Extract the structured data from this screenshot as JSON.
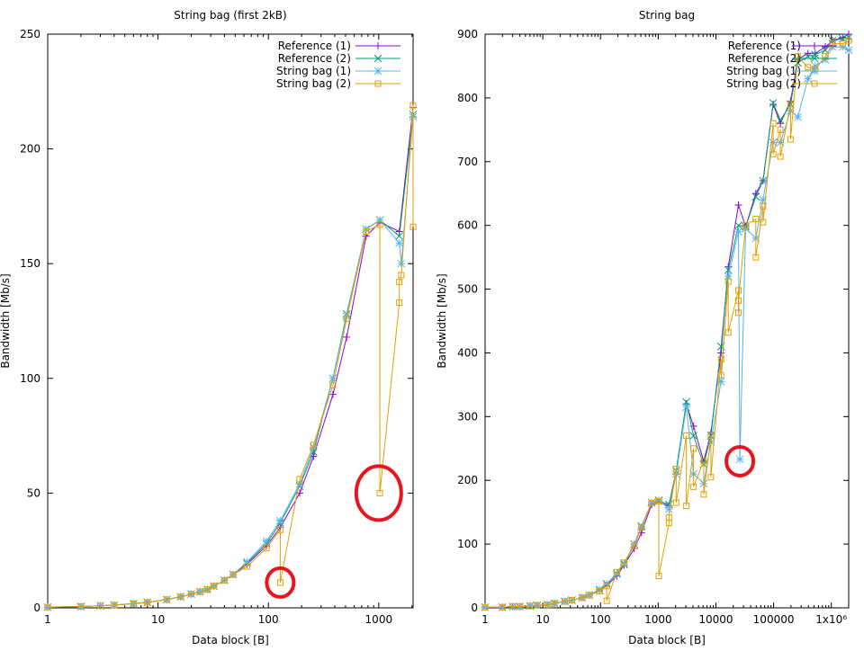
{
  "colors": {
    "ref1": "#9400d3",
    "ref2": "#009e73",
    "sb1": "#56b4e9",
    "sb2": "#e69f00",
    "highlight": "#e8141e"
  },
  "chart_data": [
    {
      "type": "line",
      "title": "String bag (first 2kB)",
      "xlabel": "Data block [B]",
      "ylabel": "Bandwidth [Mb/s]",
      "xscale": "log",
      "xlim": [
        1,
        2048
      ],
      "ylim": [
        0,
        250
      ],
      "xticks": [
        {
          "value": 1,
          "label": "1"
        },
        {
          "value": 10,
          "label": "10"
        },
        {
          "value": 100,
          "label": "100"
        },
        {
          "value": 1000,
          "label": "1000"
        }
      ],
      "yticks": [
        {
          "value": 0,
          "label": "0"
        },
        {
          "value": 50,
          "label": "50"
        },
        {
          "value": 100,
          "label": "100"
        },
        {
          "value": 150,
          "label": "150"
        },
        {
          "value": 200,
          "label": "200"
        },
        {
          "value": 250,
          "label": "250"
        }
      ],
      "legend_position": "top-right",
      "series": [
        {
          "name": "Reference (1)",
          "marker": "plus",
          "x": [
            1,
            2,
            3,
            4,
            6,
            8,
            12,
            16,
            20,
            24,
            28,
            32,
            40,
            48,
            64,
            96,
            128,
            192,
            256,
            384,
            512,
            768,
            1024,
            1536,
            2048
          ],
          "y": [
            0.3,
            0.6,
            0.9,
            1.2,
            1.8,
            2.4,
            3.6,
            4.8,
            6,
            7,
            8,
            9.5,
            12,
            14.5,
            19,
            27,
            35,
            50,
            66,
            93,
            118,
            162,
            168,
            164,
            218
          ]
        },
        {
          "name": "Reference (2)",
          "marker": "cross",
          "x": [
            1,
            2,
            3,
            4,
            6,
            8,
            12,
            16,
            20,
            24,
            28,
            32,
            40,
            48,
            64,
            96,
            128,
            192,
            256,
            384,
            512,
            768,
            1024,
            1536,
            2048
          ],
          "y": [
            0.3,
            0.6,
            0.9,
            1.2,
            1.8,
            2.4,
            3.6,
            4.8,
            6,
            7,
            8,
            9.5,
            12,
            14.5,
            19.5,
            28,
            37,
            53,
            68,
            100,
            128,
            165,
            169,
            162,
            215
          ]
        },
        {
          "name": "String bag (1)",
          "marker": "star",
          "x": [
            1,
            2,
            3,
            4,
            6,
            8,
            12,
            16,
            20,
            24,
            28,
            32,
            40,
            48,
            64,
            96,
            128,
            192,
            256,
            384,
            512,
            768,
            1024,
            1536,
            1600,
            2048
          ],
          "y": [
            0.3,
            0.6,
            0.9,
            1.2,
            1.8,
            2.4,
            3.6,
            4.8,
            6,
            7,
            8,
            9.5,
            12,
            14.5,
            20,
            29,
            38,
            54,
            70,
            100,
            127,
            165,
            169,
            159,
            150,
            214
          ]
        },
        {
          "name": "String bag (2)",
          "marker": "square",
          "x": [
            1,
            2,
            3,
            4,
            6,
            8,
            12,
            16,
            20,
            24,
            28,
            32,
            40,
            48,
            64,
            96,
            128,
            128,
            192,
            256,
            384,
            512,
            768,
            1024,
            1024,
            1536,
            1536,
            1600,
            2048,
            2048
          ],
          "y": [
            0.3,
            0.6,
            0.9,
            1.2,
            1.8,
            2.4,
            3.6,
            4.8,
            6,
            7,
            8,
            9.5,
            12,
            14.5,
            18,
            26,
            34,
            11,
            56,
            71,
            97,
            126,
            164,
            167,
            50,
            133,
            142,
            145,
            219,
            166
          ]
        }
      ],
      "annotations": [
        {
          "x": 128,
          "y": 11
        },
        {
          "x": 1000,
          "y": 50
        }
      ]
    },
    {
      "type": "line",
      "title": "String bag",
      "xlabel": "Data block [B]",
      "ylabel": "Bandwidth [Mb/s]",
      "xscale": "log",
      "xlim": [
        1,
        2000000
      ],
      "ylim": [
        0,
        900
      ],
      "xticks": [
        {
          "value": 1,
          "label": "1"
        },
        {
          "value": 10,
          "label": "10"
        },
        {
          "value": 100,
          "label": "100"
        },
        {
          "value": 1000,
          "label": "1000"
        },
        {
          "value": 10000,
          "label": "10000"
        },
        {
          "value": 100000,
          "label": "100000"
        },
        {
          "value": 1000000,
          "label": "1x10⁶"
        }
      ],
      "yticks": [
        {
          "value": 0,
          "label": "0"
        },
        {
          "value": 100,
          "label": "100"
        },
        {
          "value": 200,
          "label": "200"
        },
        {
          "value": 300,
          "label": "300"
        },
        {
          "value": 400,
          "label": "400"
        },
        {
          "value": 500,
          "label": "500"
        },
        {
          "value": 600,
          "label": "600"
        },
        {
          "value": 700,
          "label": "700"
        },
        {
          "value": 800,
          "label": "800"
        },
        {
          "value": 900,
          "label": "900"
        }
      ],
      "legend_position": "top-right",
      "series": [
        {
          "name": "Reference (1)",
          "marker": "plus",
          "x": [
            1,
            2,
            3,
            4,
            6,
            8,
            12,
            16,
            24,
            32,
            48,
            64,
            96,
            128,
            192,
            256,
            384,
            512,
            768,
            1024,
            1536,
            2048,
            3072,
            4096,
            6144,
            8192,
            12288,
            16384,
            24576,
            32768,
            49152,
            65536,
            98304,
            131072,
            196608,
            262144,
            393216,
            524288,
            786432,
            1048576,
            1572864,
            2000000
          ],
          "y": [
            1,
            1,
            2,
            2,
            3,
            4,
            5,
            7,
            10,
            12,
            16,
            20,
            27,
            35,
            50,
            67,
            93,
            118,
            162,
            166,
            160,
            210,
            320,
            285,
            230,
            275,
            400,
            535,
            632,
            598,
            650,
            670,
            790,
            760,
            795,
            860,
            870,
            870,
            880,
            890,
            895,
            900
          ]
        },
        {
          "name": "Reference (2)",
          "marker": "cross",
          "x": [
            1,
            2,
            3,
            4,
            6,
            8,
            12,
            16,
            24,
            32,
            48,
            64,
            96,
            128,
            192,
            256,
            384,
            512,
            768,
            1024,
            1536,
            2048,
            3072,
            4096,
            6144,
            8192,
            12288,
            16384,
            24576,
            32768,
            49152,
            65536,
            98304,
            131072,
            196608,
            262144,
            393216,
            524288,
            786432,
            1048576,
            1572864,
            2000000
          ],
          "y": [
            1,
            1,
            2,
            2,
            3,
            4,
            5,
            7,
            10,
            12,
            16,
            20,
            28,
            37,
            53,
            68,
            100,
            128,
            165,
            168,
            162,
            215,
            323,
            270,
            225,
            270,
            410,
            530,
            600,
            598,
            645,
            670,
            792,
            765,
            790,
            855,
            865,
            868,
            875,
            890,
            893,
            895
          ]
        },
        {
          "name": "String bag (1)",
          "marker": "star",
          "x": [
            1,
            2,
            3,
            4,
            6,
            8,
            12,
            16,
            24,
            32,
            48,
            64,
            96,
            128,
            192,
            256,
            384,
            512,
            768,
            1024,
            1536,
            2048,
            3072,
            4096,
            6144,
            8192,
            12288,
            16384,
            24576,
            26000,
            32768,
            49152,
            65536,
            98304,
            131072,
            196608,
            262144,
            393216,
            524288,
            786432,
            1048576,
            1572864,
            2000000
          ],
          "y": [
            1,
            1,
            2,
            2,
            3,
            4,
            5,
            7,
            10,
            12,
            16,
            20,
            29,
            38,
            54,
            70,
            100,
            127,
            165,
            169,
            155,
            210,
            315,
            210,
            195,
            260,
            355,
            520,
            590,
            233,
            595,
            580,
            640,
            730,
            730,
            780,
            770,
            830,
            850,
            860,
            880,
            880,
            875
          ]
        },
        {
          "name": "String bag (2)",
          "marker": "square",
          "x": [
            1,
            2,
            3,
            4,
            6,
            8,
            12,
            16,
            24,
            32,
            48,
            64,
            96,
            128,
            128,
            192,
            256,
            384,
            512,
            768,
            1024,
            1024,
            1536,
            1536,
            2048,
            2048,
            3072,
            3072,
            4096,
            4096,
            6144,
            6144,
            8192,
            8192,
            12288,
            12288,
            16384,
            16384,
            24576,
            24576,
            24576,
            32768,
            49152,
            49152,
            65536,
            65536,
            98304,
            98304,
            131072,
            131072,
            196608,
            196608,
            262144,
            393216,
            524288,
            786432,
            1048576,
            1572864,
            2000000
          ],
          "y": [
            1,
            1,
            2,
            2,
            3,
            4,
            5,
            7,
            10,
            12,
            16,
            20,
            26,
            34,
            11,
            56,
            71,
            97,
            126,
            164,
            167,
            50,
            133,
            142,
            218,
            165,
            270,
            160,
            250,
            190,
            230,
            178,
            270,
            205,
            390,
            365,
            512,
            432,
            498,
            463,
            482,
            600,
            610,
            550,
            630,
            605,
            760,
            712,
            750,
            708,
            790,
            735,
            865,
            848,
            845,
            865,
            885,
            885,
            890
          ]
        }
      ],
      "annotations": [
        {
          "x": 26000,
          "y": 230
        }
      ]
    }
  ]
}
